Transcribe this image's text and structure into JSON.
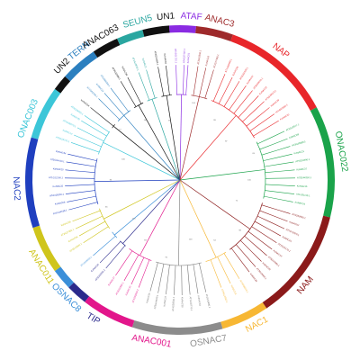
{
  "clades": [
    {
      "name": "NAP",
      "color": "#e8262a",
      "start": 20,
      "end": 62,
      "label_angle": 38
    },
    {
      "name": "ONAC022",
      "color": "#1aa34a",
      "start": 62,
      "end": 104,
      "label_angle": 80
    },
    {
      "name": "NAM",
      "color": "#8b1a1a",
      "start": 104,
      "end": 146,
      "label_angle": 130
    },
    {
      "name": "NAC1",
      "color": "#f7b733",
      "start": 146,
      "end": 164,
      "label_angle": 152
    },
    {
      "name": "OSNAC7",
      "color": "#8c8c8c",
      "start": 164,
      "end": 198,
      "label_angle": 170
    },
    {
      "name": "ANAC001",
      "color": "#e2168b",
      "start": 198,
      "end": 218,
      "label_angle": 190
    },
    {
      "name": "TIP",
      "color": "#2b2a8c",
      "start": 218,
      "end": 226,
      "label_angle": 212
    },
    {
      "name": "OSNAC8",
      "color": "#3b8fd9",
      "start": 226,
      "end": 234,
      "label_angle": 224
    },
    {
      "name": "ANAC011",
      "color": "#cfc51b",
      "start": 234,
      "end": 252,
      "label_angle": 238
    },
    {
      "name": "NAC2",
      "color": "#1f3fbf",
      "start": 252,
      "end": 286,
      "label_angle": 267
    },
    {
      "name": "ONAC003",
      "color": "#3cc6d8",
      "start": 286,
      "end": 306,
      "label_angle": 292
    },
    {
      "name": "UN2",
      "color": "#111111",
      "start": 306,
      "end": 312,
      "label_angle": 314
    },
    {
      "name": "TERN",
      "color": "#2b7fbf",
      "start": 312,
      "end": 326,
      "label_angle": 322
    },
    {
      "name": "ANAC063",
      "color": "#111111",
      "start": 326,
      "end": 336,
      "label_angle": 331
    },
    {
      "name": "SEUN5",
      "color": "#2aa6a0",
      "start": 336,
      "end": 346,
      "label_angle": 345
    },
    {
      "name": "UN1",
      "color": "#111111",
      "start": 346,
      "end": 356,
      "label_angle": 355
    },
    {
      "name": "ATAF",
      "color": "#8a2be2",
      "start": 356,
      "end": 6,
      "label_angle": 4
    },
    {
      "name": "ANAC3",
      "color": "#9e2a2b",
      "start": 6,
      "end": 20,
      "label_angle": 14
    }
  ],
  "leaves": [
    {
      "label": "AT1G01720.1",
      "color": "#8a2be2",
      "angle": 358
    },
    {
      "label": "AT4G27410.1",
      "color": "#8a2be2",
      "angle": 2
    },
    {
      "label": "KoNAC01",
      "color": "#8a2be2",
      "angle": 4
    },
    {
      "label": "AT3G15500.1",
      "color": "#9e2a2b",
      "angle": 9
    },
    {
      "label": "KoNAC18",
      "color": "#9e2a2b",
      "angle": 13
    },
    {
      "label": "AT1G77450.1",
      "color": "#9e2a2b",
      "angle": 17
    },
    {
      "label": "AT1G69490.1",
      "color": "#e8262a",
      "angle": 23
    },
    {
      "label": "KoNAC05",
      "color": "#e8262a",
      "angle": 27
    },
    {
      "label": "AT5G61430.1",
      "color": "#e8262a",
      "angle": 31
    },
    {
      "label": "KoNAC42",
      "color": "#e8262a",
      "angle": 35
    },
    {
      "label": "AT3G04070.1",
      "color": "#e8262a",
      "angle": 39
    },
    {
      "label": "KoNAC12",
      "color": "#e8262a",
      "angle": 43
    },
    {
      "label": "AT5G39610.1",
      "color": "#e8262a",
      "angle": 47
    },
    {
      "label": "KoNAC29",
      "color": "#e8262a",
      "angle": 51
    },
    {
      "label": "AT1G52880.1",
      "color": "#e8262a",
      "angle": 55
    },
    {
      "label": "KoNAC33",
      "color": "#e8262a",
      "angle": 59
    },
    {
      "label": "AT3G12977.1",
      "color": "#1aa34a",
      "angle": 65
    },
    {
      "label": "KoNAC09",
      "color": "#1aa34a",
      "angle": 69
    },
    {
      "label": "AT2G43000.1",
      "color": "#1aa34a",
      "angle": 73
    },
    {
      "label": "KoNAC21",
      "color": "#1aa34a",
      "angle": 77
    },
    {
      "label": "AT5G24590.1",
      "color": "#1aa34a",
      "angle": 81
    },
    {
      "label": "KoNAC37",
      "color": "#1aa34a",
      "angle": 85
    },
    {
      "label": "AT3G44350.1",
      "color": "#1aa34a",
      "angle": 89
    },
    {
      "label": "KoNAC15",
      "color": "#1aa34a",
      "angle": 93
    },
    {
      "label": "AT1G61110.1",
      "color": "#1aa34a",
      "angle": 97
    },
    {
      "label": "KoNAC24",
      "color": "#1aa34a",
      "angle": 101
    },
    {
      "label": "AT5G53950.1",
      "color": "#8b1a1a",
      "angle": 107
    },
    {
      "label": "KoNAC07",
      "color": "#8b1a1a",
      "angle": 111
    },
    {
      "label": "AT1G76420.1",
      "color": "#8b1a1a",
      "angle": 115
    },
    {
      "label": "KoNAC41",
      "color": "#8b1a1a",
      "angle": 119
    },
    {
      "label": "AT3G15170.1",
      "color": "#8b1a1a",
      "angle": 123
    },
    {
      "label": "KoNAC19",
      "color": "#8b1a1a",
      "angle": 127
    },
    {
      "label": "AT5G07680.1",
      "color": "#8b1a1a",
      "angle": 131
    },
    {
      "label": "KoNAC30",
      "color": "#8b1a1a",
      "angle": 135
    },
    {
      "label": "AT3G18400.1",
      "color": "#8b1a1a",
      "angle": 139
    },
    {
      "label": "KoNAC26",
      "color": "#8b1a1a",
      "angle": 143
    },
    {
      "label": "AT1G56010.1",
      "color": "#f7b733",
      "angle": 149
    },
    {
      "label": "KoNAC13",
      "color": "#f7b733",
      "angle": 154
    },
    {
      "label": "AT3G12910.1",
      "color": "#f7b733",
      "angle": 159
    },
    {
      "label": "AT2G33480.1",
      "color": "#777777",
      "angle": 167
    },
    {
      "label": "KoNAC03",
      "color": "#777777",
      "angle": 171
    },
    {
      "label": "AT1G32770.1",
      "color": "#777777",
      "angle": 175
    },
    {
      "label": "KoNAC38",
      "color": "#777777",
      "angle": 179
    },
    {
      "label": "AT4G28500.1",
      "color": "#777777",
      "angle": 183
    },
    {
      "label": "KoNAC22",
      "color": "#777777",
      "angle": 187
    },
    {
      "label": "AT5G64530.1",
      "color": "#777777",
      "angle": 191
    },
    {
      "label": "KoNAC35",
      "color": "#777777",
      "angle": 195
    },
    {
      "label": "AT1G01010.1",
      "color": "#e2168b",
      "angle": 201
    },
    {
      "label": "KoNAC10",
      "color": "#e2168b",
      "angle": 205
    },
    {
      "label": "AT4G01550.1",
      "color": "#e2168b",
      "angle": 209
    },
    {
      "label": "KoNAC27",
      "color": "#e2168b",
      "angle": 214
    },
    {
      "label": "AT5G09330.1",
      "color": "#2b2a8c",
      "angle": 220
    },
    {
      "label": "KoNAC16",
      "color": "#2b2a8c",
      "angle": 224
    },
    {
      "label": "AT1G33060.1",
      "color": "#3b8fd9",
      "angle": 229
    },
    {
      "label": "AT3G10500.1",
      "color": "#cfc51b",
      "angle": 237
    },
    {
      "label": "KoNAC06",
      "color": "#cfc51b",
      "angle": 241
    },
    {
      "label": "AT2G27300.1",
      "color": "#cfc51b",
      "angle": 245
    },
    {
      "label": "KoNAC39",
      "color": "#cfc51b",
      "angle": 249
    },
    {
      "label": "AT1G34190.1",
      "color": "#1f3fbf",
      "angle": 255
    },
    {
      "label": "KoNAC08",
      "color": "#1f3fbf",
      "angle": 259
    },
    {
      "label": "AT4G29230.1",
      "color": "#1f3fbf",
      "angle": 263
    },
    {
      "label": "KoNAC31",
      "color": "#1f3fbf",
      "angle": 267
    },
    {
      "label": "AT1G12260.1",
      "color": "#1f3fbf",
      "angle": 271
    },
    {
      "label": "KoNAC20",
      "color": "#1f3fbf",
      "angle": 275
    },
    {
      "label": "AT5G04410.1",
      "color": "#1f3fbf",
      "angle": 279
    },
    {
      "label": "KoNAC34",
      "color": "#1f3fbf",
      "angle": 283
    },
    {
      "label": "AT5G18270.1",
      "color": "#3cc6d8",
      "angle": 289
    },
    {
      "label": "KoNAC14",
      "color": "#3cc6d8",
      "angle": 293
    },
    {
      "label": "AT1G28470.1",
      "color": "#3cc6d8",
      "angle": 297
    },
    {
      "label": "KoNAC40",
      "color": "#3cc6d8",
      "angle": 301
    },
    {
      "label": "AT3G29035.1",
      "color": "#3cc6d8",
      "angle": 304
    },
    {
      "label": "KoNAC04",
      "color": "#111111",
      "angle": 309
    },
    {
      "label": "AT1G62700.1",
      "color": "#2b7fbf",
      "angle": 315
    },
    {
      "label": "KoNAC23",
      "color": "#2b7fbf",
      "angle": 319
    },
    {
      "label": "AT5G66300.1",
      "color": "#2b7fbf",
      "angle": 323
    },
    {
      "label": "AT5G22380.1",
      "color": "#111111",
      "angle": 329
    },
    {
      "label": "KoNAC36",
      "color": "#111111",
      "angle": 333
    },
    {
      "label": "AT2G18060.1",
      "color": "#2aa6a0",
      "angle": 339
    },
    {
      "label": "KoNAC11",
      "color": "#2aa6a0",
      "angle": 343
    },
    {
      "label": "AT3G10480.1",
      "color": "#111111",
      "angle": 349
    },
    {
      "label": "KoNAC02",
      "color": "#111111",
      "angle": 353
    }
  ],
  "bootstrap": [
    "100",
    "99",
    "87",
    "65",
    "100",
    "72",
    "98",
    "54",
    "100",
    "91",
    "83",
    "100",
    "66",
    "95",
    "100",
    "77",
    "100",
    "89"
  ]
}
